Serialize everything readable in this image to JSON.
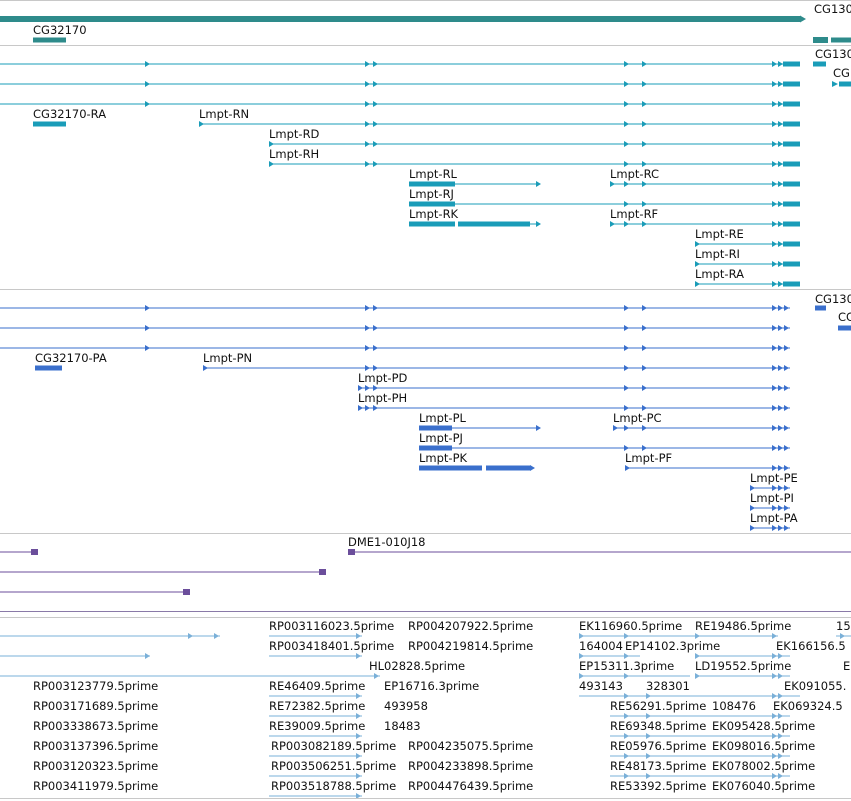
{
  "colors": {
    "gene": "#2e8b8b",
    "transcript": "#1a9cb8",
    "protein": "#3a6fcc",
    "clone": "#6b4e9b",
    "est": "#7ab0d8",
    "separator": "#c8c8c8"
  },
  "gene_track": {
    "labels": [
      "CG32170",
      "CG130"
    ]
  },
  "transcript_track": {
    "labels": [
      "CG130",
      "CG",
      "CG32170-RA",
      "Lmpt-RN",
      "Lmpt-RD",
      "Lmpt-RH",
      "Lmpt-RL",
      "Lmpt-RC",
      "Lmpt-RJ",
      "Lmpt-RK",
      "Lmpt-RF",
      "Lmpt-RE",
      "Lmpt-RI",
      "Lmpt-RA"
    ]
  },
  "protein_track": {
    "labels": [
      "CG130",
      "CG",
      "CG32170-PA",
      "Lmpt-PN",
      "Lmpt-PD",
      "Lmpt-PH",
      "Lmpt-PL",
      "Lmpt-PC",
      "Lmpt-PJ",
      "Lmpt-PK",
      "Lmpt-PF",
      "Lmpt-PE",
      "Lmpt-PI",
      "Lmpt-PA"
    ]
  },
  "clone_track": {
    "labels": [
      "DME1-010J18"
    ]
  },
  "est_track": {
    "labels": [
      "RP003116023.5prime",
      "RP004207922.5prime",
      "EK116960.5prime",
      "RE19486.5prime",
      "15",
      "RP003418401.5prime",
      "RP004219814.5prime",
      "164004",
      "EP14102.3prime",
      "EK166156.5",
      "HL02828.5prime",
      "EP15311.3prime",
      "LD19552.5prime",
      "E",
      "RP003123779.5prime",
      "RE46409.5prime",
      "EP16716.3prime",
      "493143",
      "328301",
      "EK091055.",
      "RP003171689.5prime",
      "RE72382.5prime",
      "493958",
      "RE56291.5prime",
      "108476",
      "EK069324.5",
      "RP003338673.5prime",
      "RE39009.5prime",
      "18483",
      "RE69348.5prime",
      "EK095428.5prime",
      "RP003137396.5prime",
      "RP003082189.5prime",
      "RP004235075.5prime",
      "RE05976.5prime",
      "EK098016.5prime",
      "RP003120323.5prime",
      "RP003506251.5prime",
      "RP004233898.5prime",
      "RE48173.5prime",
      "EK078002.5prime",
      "RP003411979.5prime",
      "RP003518788.5prime",
      "RP004476439.5prime",
      "RE53392.5prime",
      "EK076040.5prime"
    ]
  }
}
